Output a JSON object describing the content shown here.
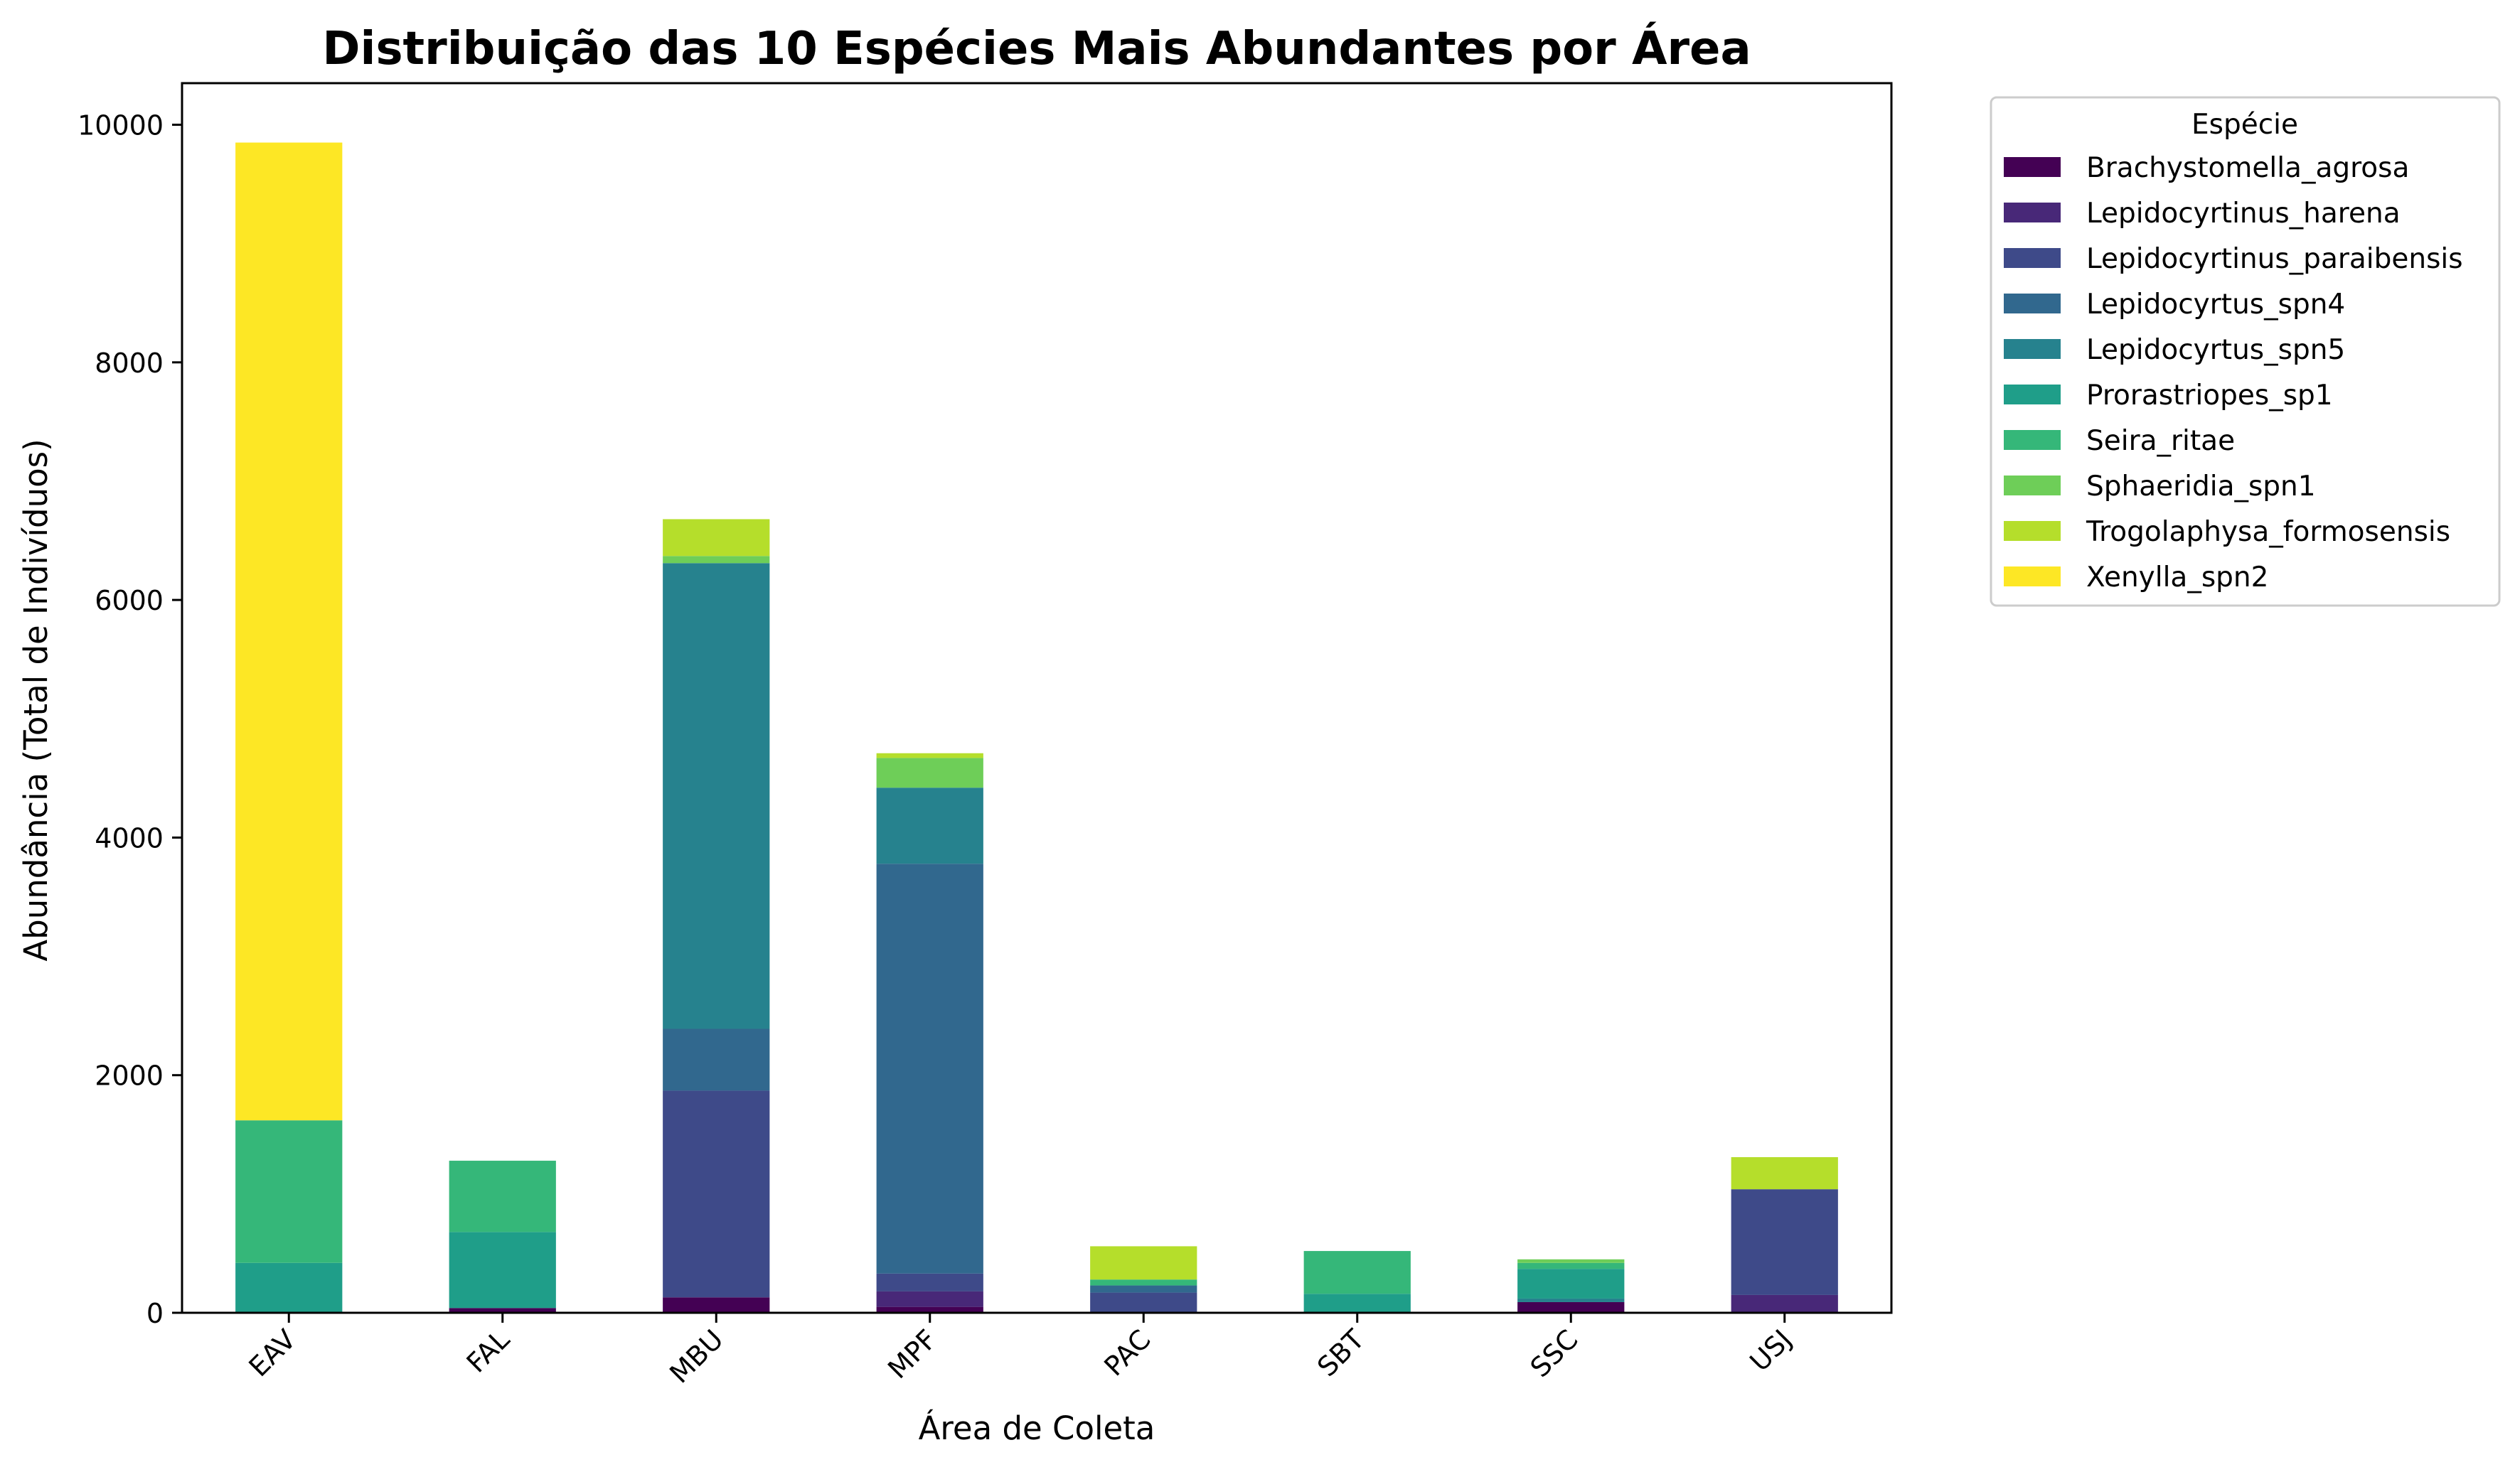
{
  "chart_data": {
    "type": "bar",
    "stacked": true,
    "title": "Distribuição das 10 Espécies Mais Abundantes por Área",
    "xlabel": "Área de Coleta",
    "ylabel": "Abundância (Total de Indivíduos)",
    "ylim": [
      0,
      10350
    ],
    "yticks": [
      0,
      2000,
      4000,
      6000,
      8000,
      10000
    ],
    "categories": [
      "EAV",
      "FAL",
      "MBU",
      "MPF",
      "PAC",
      "SBT",
      "SSC",
      "USJ"
    ],
    "legend": {
      "title": "Espécie",
      "placement": "outside-upper-right"
    },
    "grid": false,
    "series": [
      {
        "name": "Brachystomella_agrosa",
        "color": "#440154",
        "values": [
          0,
          40,
          130,
          50,
          0,
          0,
          90,
          0
        ]
      },
      {
        "name": "Lepidocyrtinus_harena",
        "color": "#482878",
        "values": [
          0,
          0,
          0,
          130,
          0,
          0,
          0,
          150
        ]
      },
      {
        "name": "Lepidocyrtinus_paraibensis",
        "color": "#3e4a89",
        "values": [
          0,
          0,
          1740,
          150,
          170,
          0,
          0,
          890
        ]
      },
      {
        "name": "Lepidocyrtus_spn4",
        "color": "#31688e",
        "values": [
          0,
          0,
          520,
          3450,
          60,
          0,
          0,
          0
        ]
      },
      {
        "name": "Lepidocyrtus_spn5",
        "color": "#26828e",
        "values": [
          0,
          0,
          3920,
          640,
          0,
          0,
          30,
          0
        ]
      },
      {
        "name": "Prorastriopes_sp1",
        "color": "#1f9e89",
        "values": [
          420,
          640,
          0,
          0,
          0,
          160,
          250,
          0
        ]
      },
      {
        "name": "Seira_ritae",
        "color": "#35b779",
        "values": [
          1200,
          600,
          0,
          0,
          50,
          360,
          50,
          0
        ]
      },
      {
        "name": "Sphaeridia_spn1",
        "color": "#6ece58",
        "values": [
          0,
          0,
          60,
          250,
          0,
          0,
          30,
          0
        ]
      },
      {
        "name": "Trogolaphysa_formosensis",
        "color": "#b5de2b",
        "values": [
          0,
          0,
          310,
          40,
          280,
          0,
          0,
          270
        ]
      },
      {
        "name": "Xenylla_spn2",
        "color": "#fde725",
        "values": [
          8230,
          0,
          0,
          0,
          0,
          0,
          0,
          0
        ]
      }
    ]
  }
}
